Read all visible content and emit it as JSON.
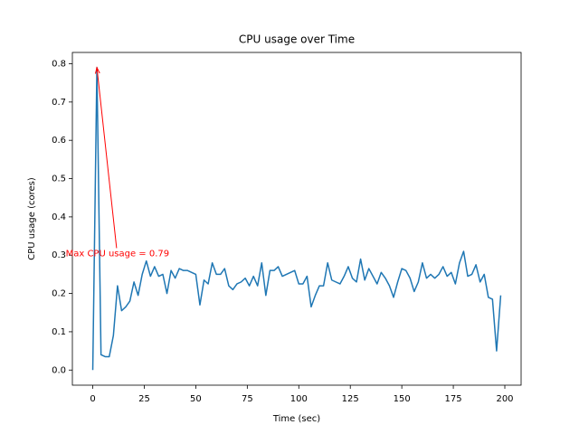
{
  "chart_data": {
    "type": "line",
    "title": "CPU usage over Time",
    "x_label": "Time (sec)",
    "y_label": "CPU usage (cores)",
    "x": [
      0,
      2,
      4,
      6,
      8,
      10,
      12,
      14,
      16,
      18,
      20,
      22,
      24,
      26,
      28,
      30,
      32,
      34,
      36,
      38,
      40,
      42,
      44,
      46,
      48,
      50,
      52,
      54,
      56,
      58,
      60,
      62,
      64,
      66,
      68,
      70,
      72,
      74,
      76,
      78,
      80,
      82,
      84,
      86,
      88,
      90,
      92,
      94,
      96,
      98,
      100,
      102,
      104,
      106,
      108,
      110,
      112,
      114,
      116,
      118,
      120,
      122,
      124,
      126,
      128,
      130,
      132,
      134,
      136,
      138,
      140,
      142,
      144,
      146,
      148,
      150,
      152,
      154,
      156,
      158,
      160,
      162,
      164,
      166,
      168,
      170,
      172,
      174,
      176,
      178,
      180,
      182,
      184,
      186,
      188,
      190,
      192,
      194,
      196,
      198
    ],
    "series": [
      {
        "name": "CPU usage",
        "color": "#1f77b4",
        "values": [
          0,
          0.79,
          0.04,
          0.035,
          0.035,
          0.09,
          0.22,
          0.155,
          0.165,
          0.18,
          0.23,
          0.195,
          0.25,
          0.285,
          0.245,
          0.27,
          0.245,
          0.25,
          0.2,
          0.26,
          0.24,
          0.265,
          0.26,
          0.26,
          0.255,
          0.25,
          0.17,
          0.235,
          0.225,
          0.28,
          0.25,
          0.25,
          0.265,
          0.22,
          0.21,
          0.225,
          0.23,
          0.24,
          0.22,
          0.245,
          0.22,
          0.28,
          0.195,
          0.26,
          0.26,
          0.27,
          0.245,
          0.25,
          0.255,
          0.26,
          0.225,
          0.225,
          0.245,
          0.165,
          0.195,
          0.22,
          0.22,
          0.28,
          0.235,
          0.23,
          0.225,
          0.245,
          0.27,
          0.24,
          0.23,
          0.29,
          0.235,
          0.265,
          0.245,
          0.225,
          0.255,
          0.24,
          0.22,
          0.19,
          0.23,
          0.265,
          0.26,
          0.24,
          0.205,
          0.23,
          0.28,
          0.24,
          0.25,
          0.24,
          0.25,
          0.27,
          0.245,
          0.255,
          0.225,
          0.28,
          0.31,
          0.245,
          0.25,
          0.275,
          0.23,
          0.25,
          0.19,
          0.185,
          0.05,
          0.195
        ]
      }
    ],
    "xlim": [
      -9.9,
      207.9
    ],
    "ylim": [
      -0.0395,
      0.8295
    ],
    "xticks": [
      0,
      25,
      50,
      75,
      100,
      125,
      150,
      175,
      200
    ],
    "yticks": [
      {
        "value": 0,
        "label": "0.0"
      },
      0.1,
      0.2,
      0.3,
      0.4,
      0.5,
      0.6,
      0.7,
      0.8
    ],
    "annotation": {
      "text": "Max CPU usage = 0.79",
      "color": "#ff0000",
      "xy": [
        2,
        0.79
      ],
      "xytext": [
        12,
        0.29
      ]
    }
  }
}
